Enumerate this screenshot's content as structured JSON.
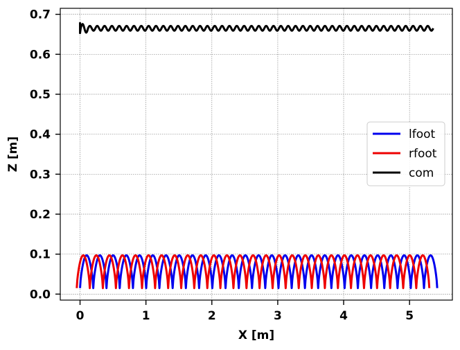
{
  "chart_data": {
    "type": "line",
    "title": "",
    "xlabel": "X [m]",
    "ylabel": "Z [m]",
    "xlim": [
      -0.3,
      5.65
    ],
    "ylim": [
      -0.015,
      0.715
    ],
    "xticks": [
      0,
      1,
      2,
      3,
      4,
      5
    ],
    "xtick_labels": [
      "0",
      "1",
      "2",
      "3",
      "4",
      "5"
    ],
    "yticks": [
      0.0,
      0.1,
      0.2,
      0.3,
      0.4,
      0.5,
      0.6,
      0.7
    ],
    "ytick_labels": [
      "0.0",
      "0.1",
      "0.2",
      "0.3",
      "0.4",
      "0.5",
      "0.6",
      "0.7"
    ],
    "grid": true,
    "legend_position": "center-right",
    "series": [
      {
        "name": "lfoot",
        "color": "#0000ee",
        "shape": "arches",
        "x_start": 0.0,
        "x_end": 5.42,
        "step_count": 27,
        "z_min": 0.015,
        "z_max": 0.097
      },
      {
        "name": "rfoot",
        "color": "#ee0000",
        "shape": "arches",
        "x_start": -0.05,
        "x_end": 5.3,
        "step_count": 27,
        "z_min": 0.015,
        "z_max": 0.097
      },
      {
        "name": "com",
        "color": "#000000",
        "shape": "oscillation",
        "x_start": 0.0,
        "x_end": 5.36,
        "z_start": 0.68,
        "z_mean": 0.665,
        "z_amplitude": 0.006,
        "cycles": 48
      }
    ]
  }
}
